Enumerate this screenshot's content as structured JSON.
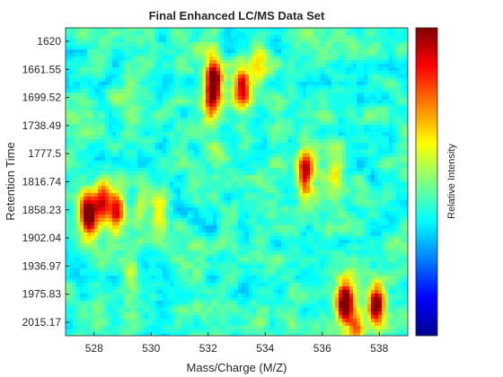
{
  "chart_data": {
    "type": "heatmap",
    "title": "Final Enhanced LC/MS Data Set",
    "xlabel": "Mass/Charge (M/Z)",
    "ylabel": "Retention Time",
    "colorbar_label": "Relative Intensity",
    "colormap": "jet",
    "xlim": [
      527.0,
      539.0
    ],
    "x_ticks": [
      528,
      530,
      532,
      534,
      536,
      538
    ],
    "x_tick_labels": [
      "528",
      "530",
      "532",
      "534",
      "536",
      "538"
    ],
    "y_tick_labels": [
      "1620",
      "1661.55",
      "1699.52",
      "1738.49",
      "1777.5",
      "1816.74",
      "1858.23",
      "1902.04",
      "1936.97",
      "1975.83",
      "2015.17"
    ],
    "y_direction": "reverse",
    "background_level": 0.42,
    "peaks": [
      {
        "mz": 532.2,
        "rt_index": 1.3,
        "intensity": 0.95
      },
      {
        "mz": 532.1,
        "rt_index": 2.3,
        "intensity": 0.7
      },
      {
        "mz": 533.2,
        "rt_index": 1.7,
        "intensity": 0.8
      },
      {
        "mz": 533.8,
        "rt_index": 1.0,
        "intensity": 0.6
      },
      {
        "mz": 527.8,
        "rt_index": 6.2,
        "intensity": 0.96
      },
      {
        "mz": 528.3,
        "rt_index": 5.6,
        "intensity": 0.82
      },
      {
        "mz": 528.8,
        "rt_index": 6.0,
        "intensity": 0.78
      },
      {
        "mz": 530.3,
        "rt_index": 6.1,
        "intensity": 0.65
      },
      {
        "mz": 529.6,
        "rt_index": 6.1,
        "intensity": 0.55
      },
      {
        "mz": 535.4,
        "rt_index": 4.7,
        "intensity": 0.86
      },
      {
        "mz": 536.5,
        "rt_index": 4.7,
        "intensity": 0.62
      },
      {
        "mz": 536.8,
        "rt_index": 9.3,
        "intensity": 0.97
      },
      {
        "mz": 537.2,
        "rt_index": 10.2,
        "intensity": 0.72
      },
      {
        "mz": 537.9,
        "rt_index": 9.3,
        "intensity": 0.93
      },
      {
        "mz": 532.3,
        "rt_index": 4.3,
        "intensity": 0.5
      },
      {
        "mz": 529.3,
        "rt_index": 8.3,
        "intensity": 0.55
      }
    ]
  }
}
